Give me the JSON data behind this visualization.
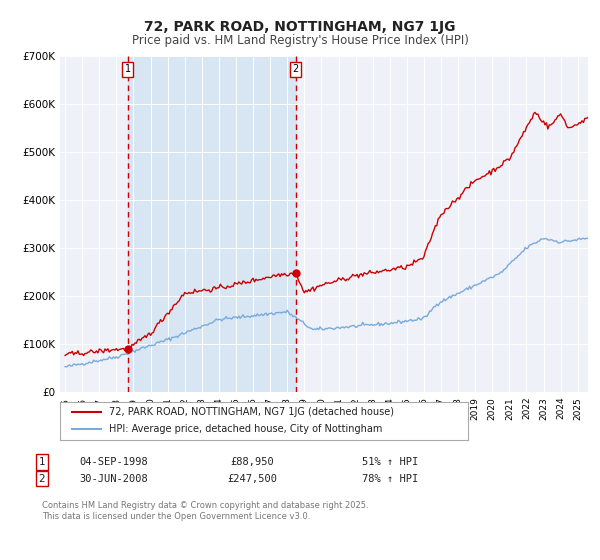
{
  "title": "72, PARK ROAD, NOTTINGHAM, NG7 1JG",
  "subtitle": "Price paid vs. HM Land Registry's House Price Index (HPI)",
  "ylim": [
    0,
    700000
  ],
  "yticks": [
    0,
    100000,
    200000,
    300000,
    400000,
    500000,
    600000,
    700000
  ],
  "ytick_labels": [
    "£0",
    "£100K",
    "£200K",
    "£300K",
    "£400K",
    "£500K",
    "£600K",
    "£700K"
  ],
  "xlim_start": 1994.7,
  "xlim_end": 2025.6,
  "xtick_years": [
    1995,
    1996,
    1997,
    1998,
    1999,
    2000,
    2001,
    2002,
    2003,
    2004,
    2005,
    2006,
    2007,
    2008,
    2009,
    2010,
    2011,
    2012,
    2013,
    2014,
    2015,
    2016,
    2017,
    2018,
    2019,
    2020,
    2021,
    2022,
    2023,
    2024,
    2025
  ],
  "red_line_color": "#cc0000",
  "blue_line_color": "#7aaadc",
  "background_color": "#ffffff",
  "plot_bg_color": "#eef2f8",
  "shaded_region_color": "#d8e6f4",
  "grid_color": "#ffffff",
  "title_fontsize": 10,
  "subtitle_fontsize": 8.5,
  "ann1_year": 1998.67,
  "ann1_value": 88950,
  "ann1_label": "1",
  "ann1_date": "04-SEP-1998",
  "ann1_price": "£88,950",
  "ann1_pct": "51% ↑ HPI",
  "ann2_year": 2008.5,
  "ann2_value": 247500,
  "ann2_label": "2",
  "ann2_date": "30-JUN-2008",
  "ann2_price": "£247,500",
  "ann2_pct": "78% ↑ HPI",
  "legend_line1": "72, PARK ROAD, NOTTINGHAM, NG7 1JG (detached house)",
  "legend_line2": "HPI: Average price, detached house, City of Nottingham",
  "footer": "Contains HM Land Registry data © Crown copyright and database right 2025.\nThis data is licensed under the Open Government Licence v3.0."
}
